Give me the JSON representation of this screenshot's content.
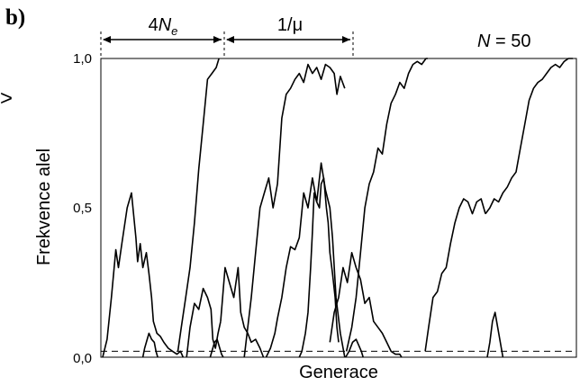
{
  "panel_label": "b)",
  "left_edge_mark": ">",
  "chart_data": {
    "type": "line",
    "title": "",
    "xlabel": "Generace",
    "ylabel": "Frekvence alel",
    "ylim": [
      0,
      1
    ],
    "xlim": [
      0,
      540
    ],
    "grid": false,
    "yticks": [
      {
        "value": 0,
        "label": "0,0"
      },
      {
        "value": 0.5,
        "label": "0,5"
      },
      {
        "value": 1,
        "label": "1,0"
      }
    ],
    "annotations": {
      "population_prefix": "N",
      "population_value": " = 50",
      "interval_fixation_coeff": "4",
      "interval_fixation_sym": "N",
      "interval_fixation_sub": "e",
      "interval_mutation": "1/μ",
      "interval_fixation_range": [
        0,
        133
      ],
      "interval_mutation_range": [
        133,
        277
      ],
      "threshold_line": 0.02
    },
    "series": [
      {
        "x": [
          0,
          5,
          10,
          15,
          18,
          22,
          28,
          33,
          38,
          40,
          43,
          46,
          50,
          53,
          56,
          58,
          62,
          66,
          70,
          75,
          80,
          85,
          89,
          92
        ],
        "y": [
          0,
          0.06,
          0.2,
          0.36,
          0.3,
          0.38,
          0.5,
          0.55,
          0.4,
          0.32,
          0.38,
          0.3,
          0.35,
          0.28,
          0.2,
          0.12,
          0.08,
          0.07,
          0.05,
          0.03,
          0.02,
          0.01,
          0.02,
          0
        ]
      },
      {
        "x": [
          46,
          48,
          50,
          53,
          56,
          59,
          61,
          63
        ],
        "y": [
          0,
          0.03,
          0.05,
          0.08,
          0.06,
          0.05,
          0.02,
          0
        ]
      },
      {
        "x": [
          86,
          90,
          95,
          100,
          105,
          110,
          115,
          120,
          125,
          130,
          133
        ],
        "y": [
          0.02,
          0.1,
          0.2,
          0.3,
          0.45,
          0.63,
          0.78,
          0.93,
          0.95,
          0.97,
          1.0
        ]
      },
      {
        "x": [
          96,
          100,
          105,
          110,
          115,
          120,
          124,
          126,
          129,
          132,
          135
        ],
        "y": [
          0,
          0.1,
          0.18,
          0.16,
          0.23,
          0.2,
          0.16,
          0.06,
          0.03,
          0.08,
          0.12
        ]
      },
      {
        "x": [
          123,
          125,
          128,
          131,
          134,
          136,
          138
        ],
        "y": [
          0,
          0.02,
          0.05,
          0.06,
          0.03,
          0.01,
          0
        ]
      },
      {
        "x": [
          135,
          140,
          145,
          150,
          155,
          158,
          162,
          166,
          170,
          175,
          180,
          184
        ],
        "y": [
          0.12,
          0.3,
          0.25,
          0.2,
          0.3,
          0.15,
          0.1,
          0.08,
          0.05,
          0.06,
          0.03,
          0
        ]
      },
      {
        "x": [
          162,
          166,
          170,
          175,
          180,
          185,
          190,
          195,
          200,
          205,
          210,
          215,
          220,
          225,
          230,
          235,
          240,
          245,
          250,
          255,
          260,
          265,
          268,
          272,
          277
        ],
        "y": [
          0,
          0.1,
          0.2,
          0.35,
          0.5,
          0.55,
          0.6,
          0.5,
          0.58,
          0.8,
          0.88,
          0.9,
          0.93,
          0.95,
          0.92,
          0.98,
          0.95,
          0.97,
          0.93,
          0.98,
          0.97,
          0.95,
          0.88,
          0.94,
          0.9
        ]
      },
      {
        "x": [
          187,
          192,
          197,
          200,
          205,
          210,
          215,
          220,
          225,
          230,
          235,
          240,
          245,
          250,
          255,
          260,
          263,
          267,
          272,
          277
        ],
        "y": [
          0,
          0.03,
          0.08,
          0.13,
          0.2,
          0.3,
          0.37,
          0.36,
          0.4,
          0.55,
          0.5,
          0.6,
          0.52,
          0.65,
          0.56,
          0.5,
          0.4,
          0.2,
          0.08,
          0
        ]
      },
      {
        "x": [
          225,
          228,
          232,
          235,
          238,
          240,
          242,
          245,
          248,
          250,
          253,
          256,
          258,
          260,
          263,
          266,
          268,
          270
        ],
        "y": [
          0,
          0.02,
          0.08,
          0.15,
          0.3,
          0.42,
          0.55,
          0.52,
          0.5,
          0.58,
          0.6,
          0.5,
          0.45,
          0.35,
          0.28,
          0.2,
          0.1,
          0.05
        ]
      },
      {
        "x": [
          260,
          265,
          270,
          275,
          280,
          285,
          290,
          295,
          300,
          305,
          310,
          315,
          320,
          325,
          330,
          335,
          340,
          342
        ],
        "y": [
          0.05,
          0.15,
          0.2,
          0.3,
          0.25,
          0.35,
          0.3,
          0.26,
          0.18,
          0.2,
          0.12,
          0.1,
          0.08,
          0.05,
          0.02,
          0.01,
          0.01,
          0
        ]
      },
      {
        "x": [
          279,
          285,
          290,
          295,
          300,
          305,
          310,
          315,
          320,
          325,
          330,
          335,
          340,
          345,
          350,
          355,
          360,
          365,
          370,
          372
        ],
        "y": [
          0.02,
          0.1,
          0.2,
          0.35,
          0.5,
          0.58,
          0.62,
          0.7,
          0.68,
          0.78,
          0.85,
          0.88,
          0.92,
          0.9,
          0.95,
          0.98,
          0.99,
          0.98,
          1.0,
          1.0
        ]
      },
      {
        "x": [
          278,
          282,
          286,
          290,
          293,
          296,
          298
        ],
        "y": [
          0,
          0.02,
          0.05,
          0.06,
          0.04,
          0.02,
          0
        ]
      },
      {
        "x": [
          369,
          373,
          378,
          383,
          388,
          393,
          398,
          403,
          408,
          413,
          418,
          423,
          428,
          433,
          438
        ],
        "y": [
          0.02,
          0.1,
          0.2,
          0.22,
          0.28,
          0.3,
          0.38,
          0.45,
          0.5,
          0.53,
          0.52,
          0.48,
          0.52,
          0.53,
          0.48
        ]
      },
      {
        "x": [
          438,
          443,
          448,
          453,
          458,
          463,
          468,
          473,
          478,
          483,
          488,
          493,
          498,
          503,
          508,
          513,
          518,
          523,
          528,
          533,
          538
        ],
        "y": [
          0.48,
          0.5,
          0.53,
          0.52,
          0.55,
          0.57,
          0.6,
          0.62,
          0.7,
          0.78,
          0.86,
          0.9,
          0.92,
          0.93,
          0.95,
          0.97,
          0.98,
          0.97,
          0.99,
          1.0,
          1.0
        ]
      },
      {
        "x": [
          440,
          443,
          446,
          449,
          452,
          455,
          458
        ],
        "y": [
          0,
          0.05,
          0.12,
          0.15,
          0.1,
          0.05,
          0
        ]
      }
    ]
  }
}
